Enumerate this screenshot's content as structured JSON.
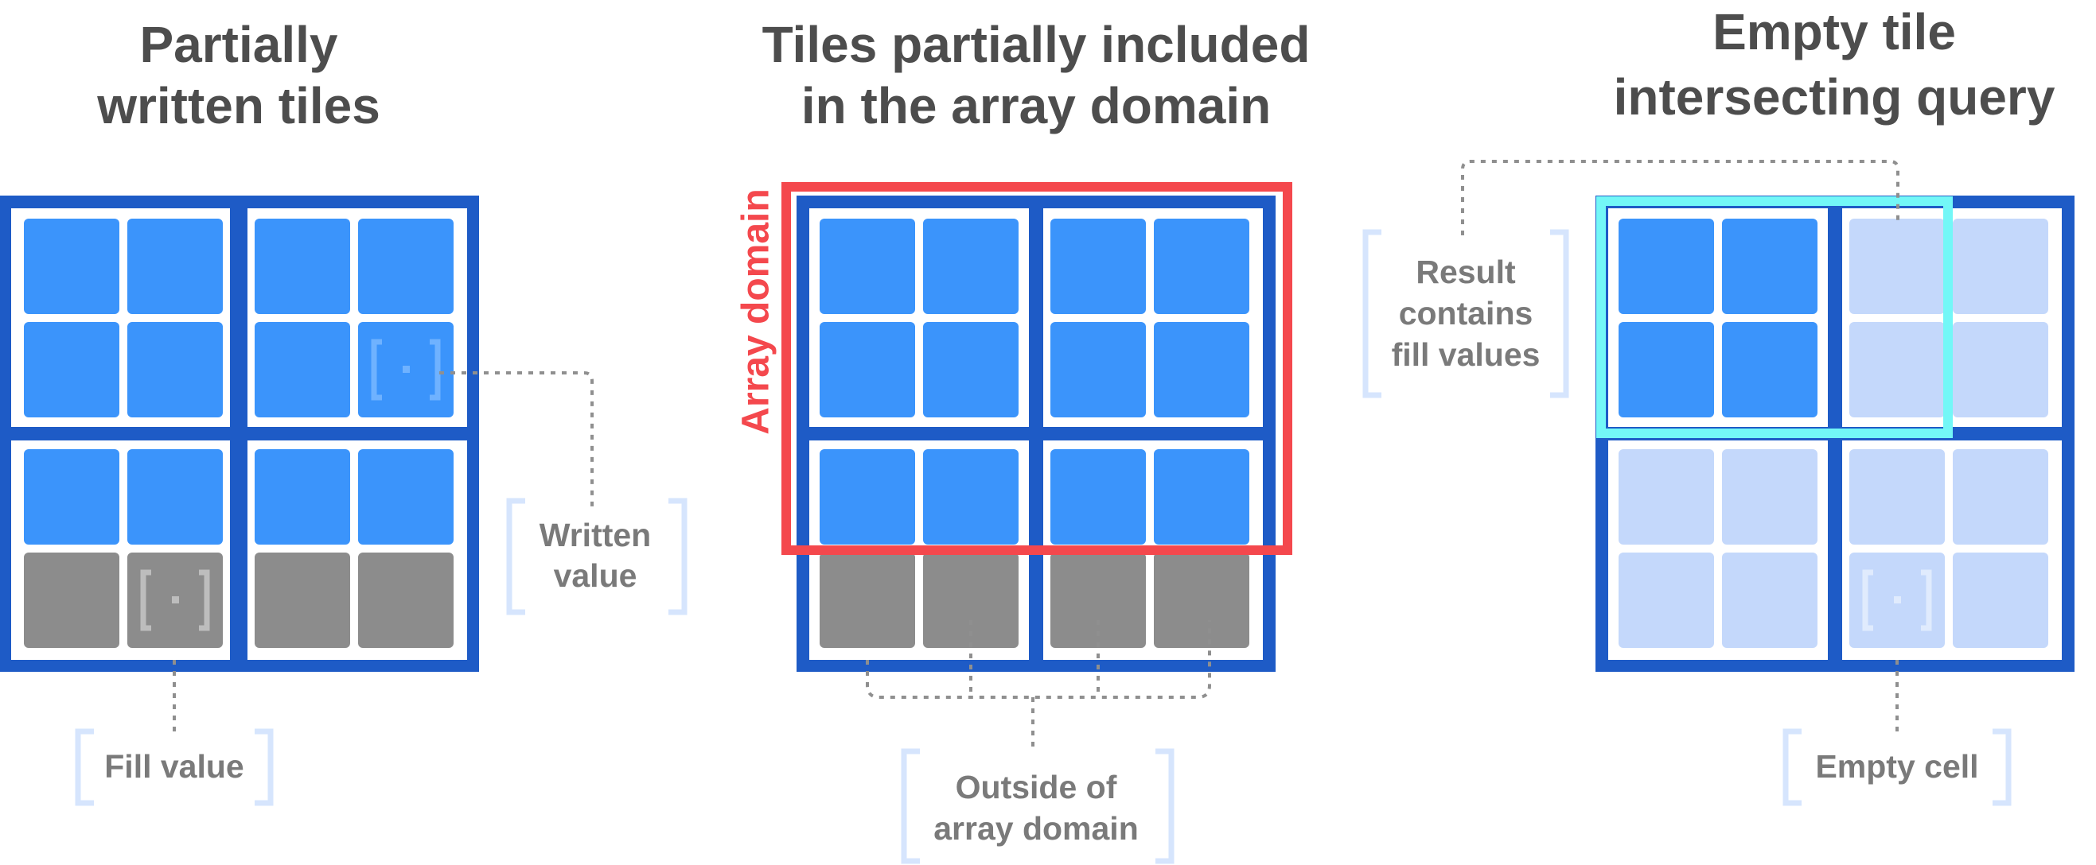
{
  "colors": {
    "tile_border": "#1e5bc6",
    "cell_written": "#3b94fb",
    "cell_fill": "#8c8c8c",
    "cell_empty": "#c4d8fb",
    "domain": "#f4484d",
    "query": "#73f7f7",
    "bracket": "#d6e5fd",
    "title_text": "#4d4d4d",
    "label_text": "#7a7a7a",
    "leader": "#8f8f8f"
  },
  "panels": [
    {
      "title_lines": [
        "Partially",
        "written tiles"
      ],
      "labels": [
        {
          "lines": [
            "Written",
            "value"
          ]
        },
        {
          "lines": [
            "Fill value"
          ]
        }
      ]
    },
    {
      "title_lines": [
        "Tiles partially included",
        "in the array domain"
      ],
      "domain_label": "Array domain",
      "labels": [
        {
          "lines": [
            "Outside of",
            "array domain"
          ]
        }
      ]
    },
    {
      "title_lines": [
        "Empty tile",
        "intersecting query"
      ],
      "labels": [
        {
          "lines": [
            "Result",
            "contains",
            "fill values"
          ]
        },
        {
          "lines": [
            "Empty cell"
          ]
        }
      ]
    }
  ]
}
